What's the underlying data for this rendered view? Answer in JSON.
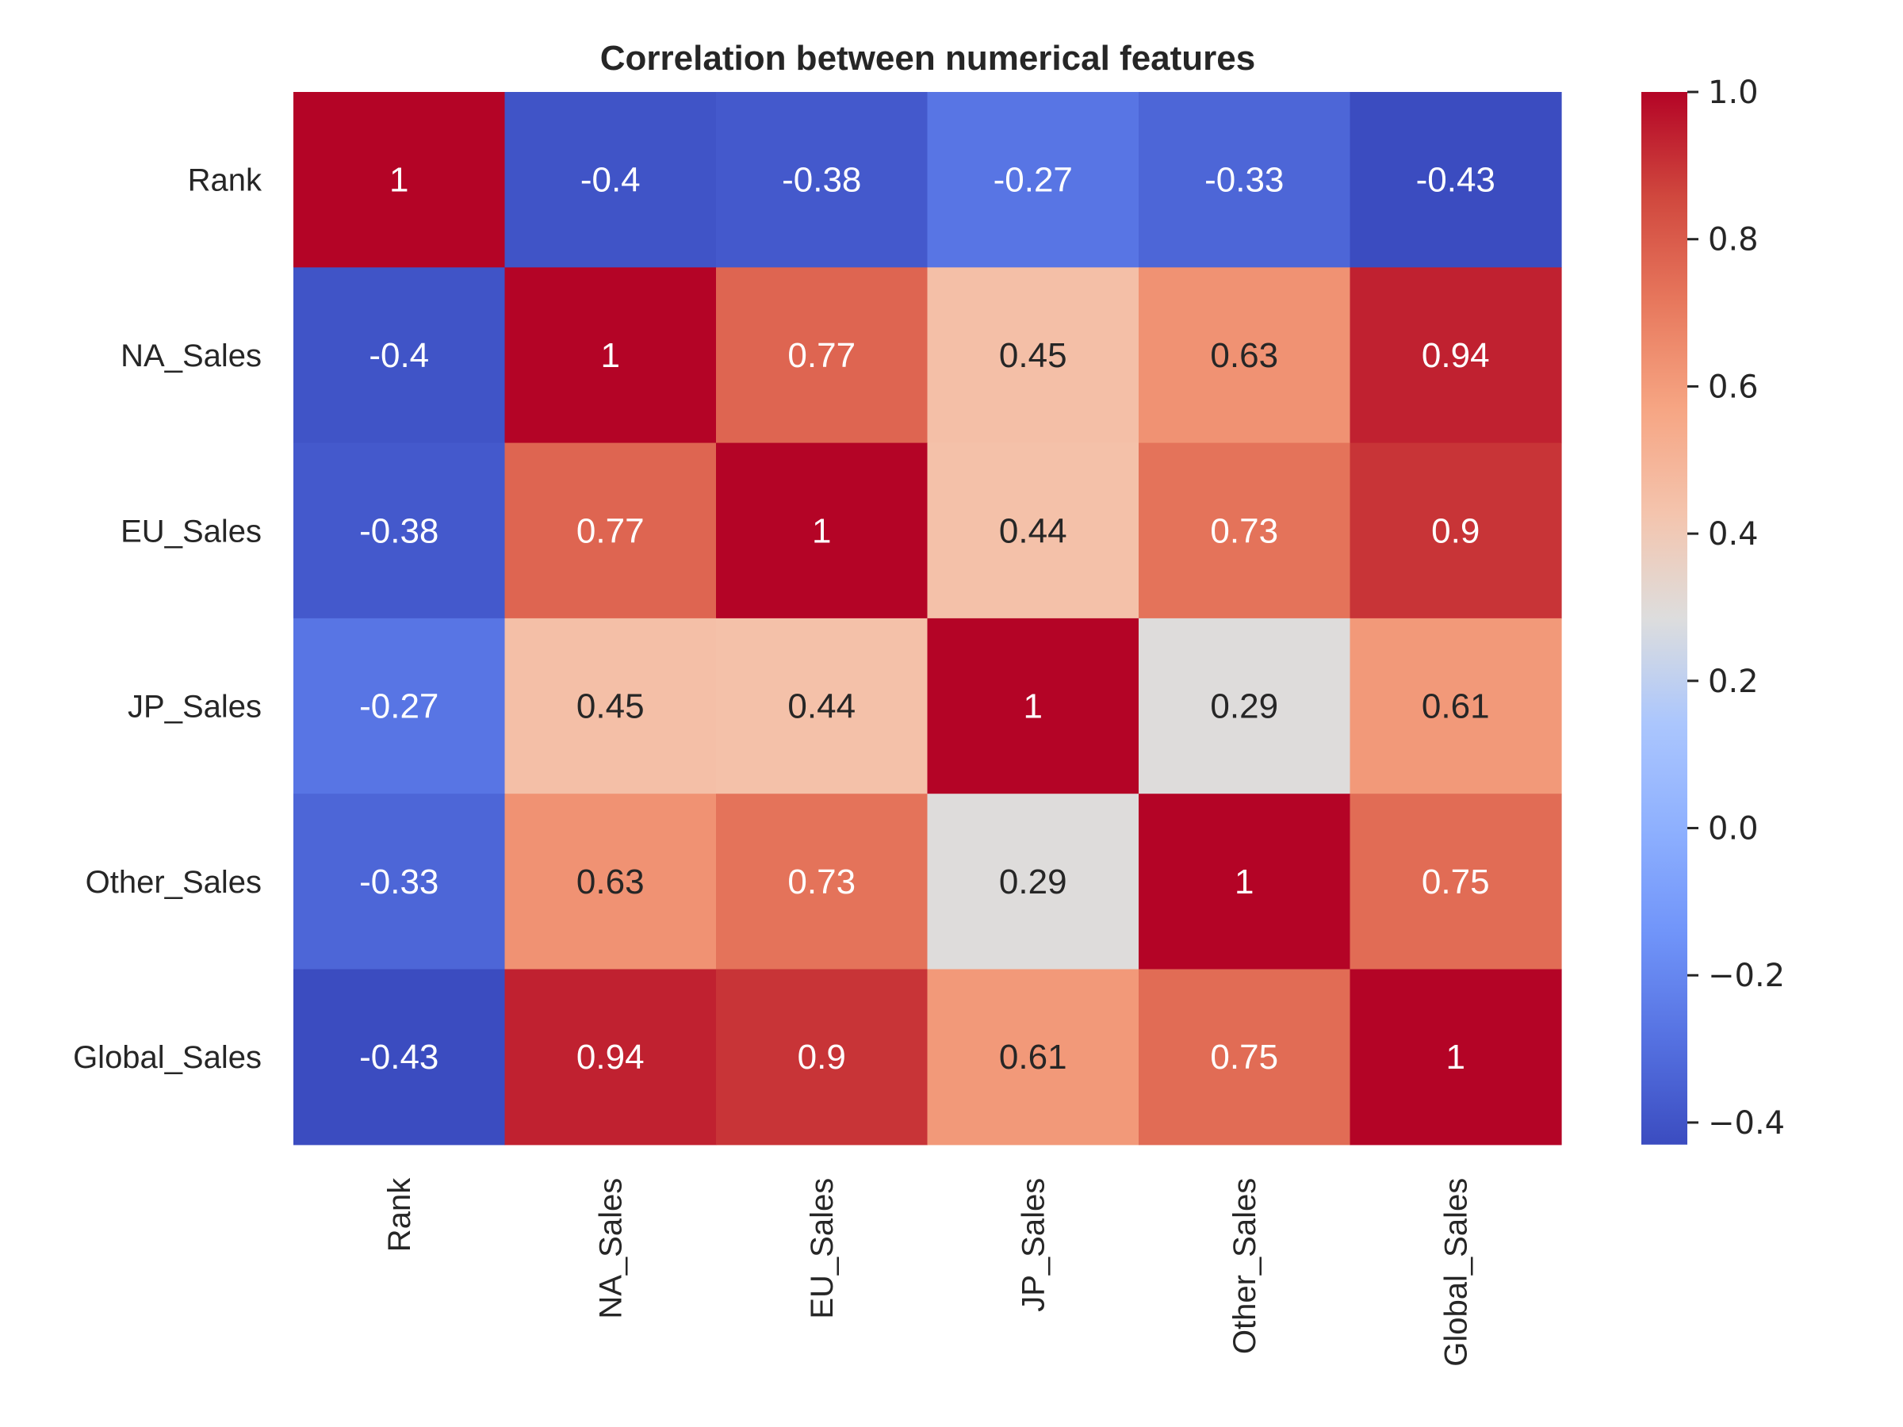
{
  "chart_data": {
    "type": "heatmap",
    "title": "Correlation between numerical features",
    "row_labels": [
      "Rank",
      "NA_Sales",
      "EU_Sales",
      "JP_Sales",
      "Other_Sales",
      "Global_Sales"
    ],
    "col_labels": [
      "Rank",
      "NA_Sales",
      "EU_Sales",
      "JP_Sales",
      "Other_Sales",
      "Global_Sales"
    ],
    "values": [
      [
        1,
        -0.4,
        -0.38,
        -0.27,
        -0.33,
        -0.43
      ],
      [
        -0.4,
        1,
        0.77,
        0.45,
        0.63,
        0.94
      ],
      [
        -0.38,
        0.77,
        1,
        0.44,
        0.73,
        0.9
      ],
      [
        -0.27,
        0.45,
        0.44,
        1,
        0.29,
        0.61
      ],
      [
        -0.33,
        0.63,
        0.73,
        0.29,
        1,
        0.75
      ],
      [
        -0.43,
        0.94,
        0.9,
        0.61,
        0.75,
        1
      ]
    ],
    "annotations": [
      [
        "1",
        "-0.4",
        "-0.38",
        "-0.27",
        "-0.33",
        "-0.43"
      ],
      [
        "-0.4",
        "1",
        "0.77",
        "0.45",
        "0.63",
        "0.94"
      ],
      [
        "-0.38",
        "0.77",
        "1",
        "0.44",
        "0.73",
        "0.9"
      ],
      [
        "-0.27",
        "0.45",
        "0.44",
        "1",
        "0.29",
        "0.61"
      ],
      [
        "-0.33",
        "0.63",
        "0.73",
        "0.29",
        "1",
        "0.75"
      ],
      [
        "-0.43",
        "0.94",
        "0.9",
        "0.61",
        "0.75",
        "1"
      ]
    ],
    "colormap": "coolwarm",
    "vmin": -0.43,
    "vmax": 1.0,
    "colorbar": {
      "ticks": [
        1.0,
        0.8,
        0.6,
        0.4,
        0.2,
        0.0,
        -0.2,
        -0.4
      ],
      "tick_labels": [
        "1.0",
        "0.8",
        "0.6",
        "0.4",
        "0.2",
        "0.0",
        "−0.2",
        "−0.4"
      ]
    }
  }
}
